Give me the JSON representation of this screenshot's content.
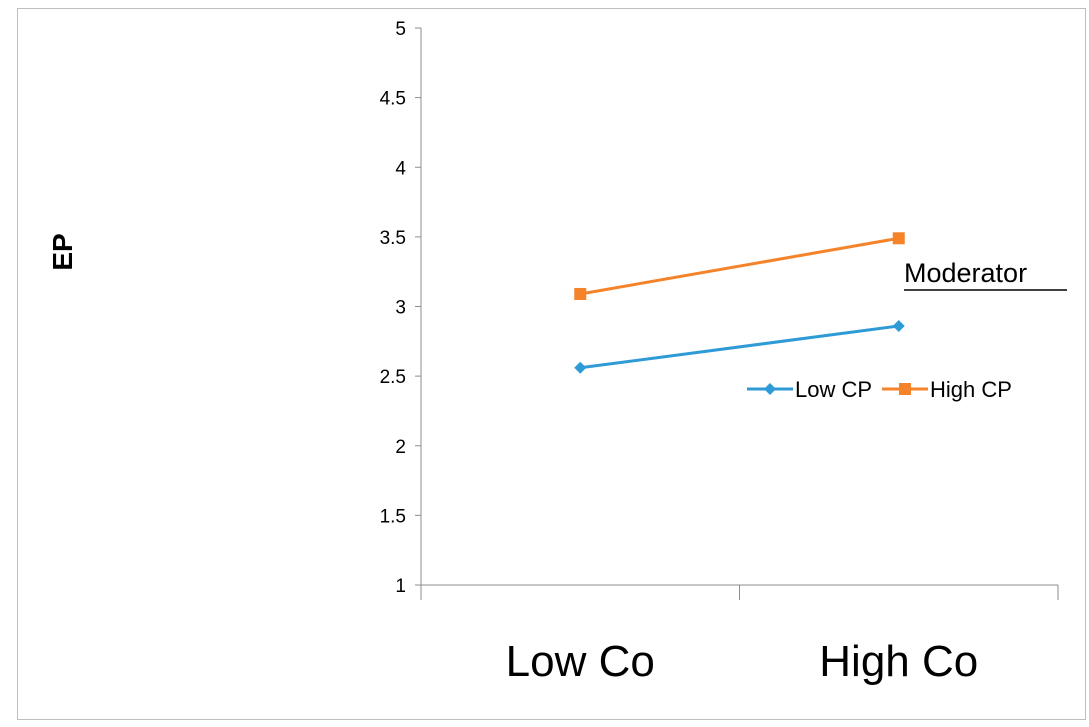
{
  "chart_data": {
    "type": "line",
    "categories": [
      "Low Co",
      "High Co"
    ],
    "series": [
      {
        "name": "Low CP",
        "values": [
          2.56,
          2.86
        ],
        "color": "#2e9bd6",
        "marker": "diamond"
      },
      {
        "name": "High CP",
        "values": [
          3.09,
          3.49
        ],
        "color": "#f5832a",
        "marker": "square"
      }
    ],
    "title": "",
    "xlabel": "",
    "ylabel": "EP",
    "ylim": [
      1,
      5
    ],
    "yticks": [
      "1",
      "1.5",
      "2",
      "2.5",
      "3",
      "3.5",
      "4",
      "4.5",
      "5"
    ],
    "legend": {
      "title": "Moderator",
      "position": "right"
    },
    "grid": false
  }
}
